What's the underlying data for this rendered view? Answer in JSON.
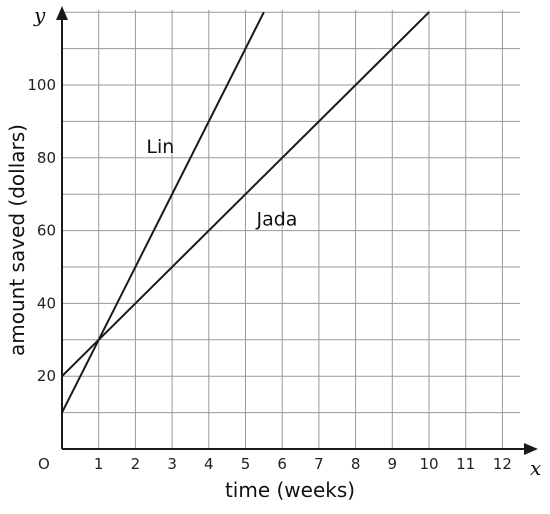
{
  "chart_data": {
    "type": "line",
    "xlabel": "time (weeks)",
    "ylabel": "amount saved (dollars)",
    "x_var": "x",
    "y_var": "y",
    "origin_label": "O",
    "xlim": [
      0,
      12
    ],
    "ylim": [
      0,
      110
    ],
    "grid": true,
    "x_ticks": [
      1,
      2,
      3,
      4,
      5,
      6,
      7,
      8,
      9,
      10,
      11,
      12
    ],
    "y_ticks": [
      20,
      40,
      60,
      80,
      100
    ],
    "series": [
      {
        "name": "Lin",
        "intercept": 10,
        "slope": 20,
        "x": [
          0,
          5.5
        ],
        "y": [
          10,
          120
        ]
      },
      {
        "name": "Jada",
        "intercept": 20,
        "slope": 10,
        "x": [
          0,
          10
        ],
        "y": [
          20,
          120
        ]
      }
    ],
    "colors": {
      "line": "#1a1a1a",
      "grid": "#9a9a9a"
    }
  }
}
